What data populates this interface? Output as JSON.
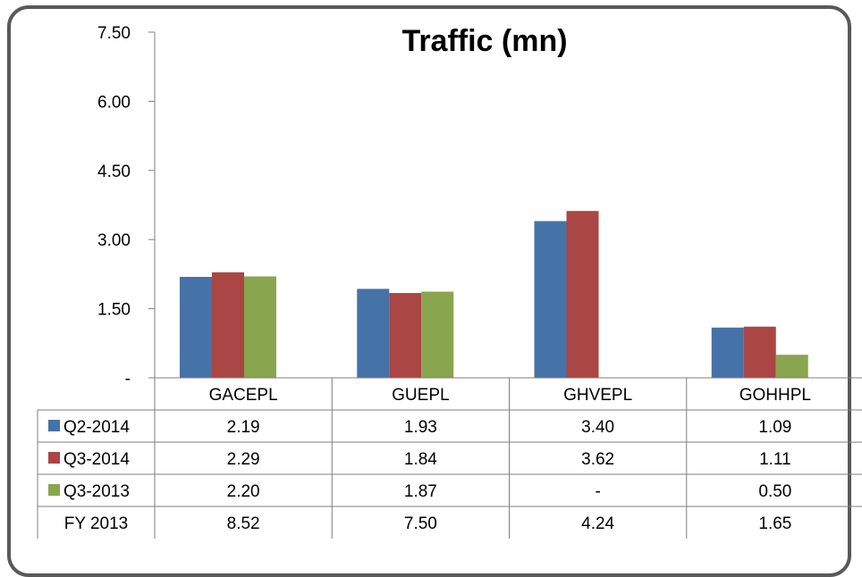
{
  "chart_data": {
    "type": "bar",
    "title": "Traffic (mn)",
    "categories": [
      "GACEPL",
      "GUEPL",
      "GHVEPL",
      "GOHHPL"
    ],
    "ylim": [
      0,
      7.5
    ],
    "yticks": [
      0,
      1.5,
      3.0,
      4.5,
      6.0,
      7.5
    ],
    "ytick_labels": [
      "-",
      "1.50",
      "3.00",
      "4.50",
      "6.00",
      "7.50"
    ],
    "grid": false,
    "legend": "data-table",
    "series": [
      {
        "name": "Q2-2014",
        "color": "#4572A7",
        "values": [
          2.19,
          1.93,
          3.4,
          1.09
        ],
        "labels": [
          "2.19",
          "1.93",
          "3.40",
          "1.09"
        ]
      },
      {
        "name": "Q3-2014",
        "color": "#AA4643",
        "values": [
          2.29,
          1.84,
          3.62,
          1.11
        ],
        "labels": [
          "2.29",
          "1.84",
          "3.62",
          "1.11"
        ]
      },
      {
        "name": "Q3-2013",
        "color": "#89A54E",
        "values": [
          2.2,
          1.87,
          null,
          0.5
        ],
        "labels": [
          "2.20",
          "1.87",
          "-",
          "0.50"
        ]
      }
    ],
    "table_rows": [
      {
        "name": "FY 2013",
        "labels": [
          "8.52",
          "7.50",
          "4.24",
          "1.65"
        ]
      }
    ]
  }
}
